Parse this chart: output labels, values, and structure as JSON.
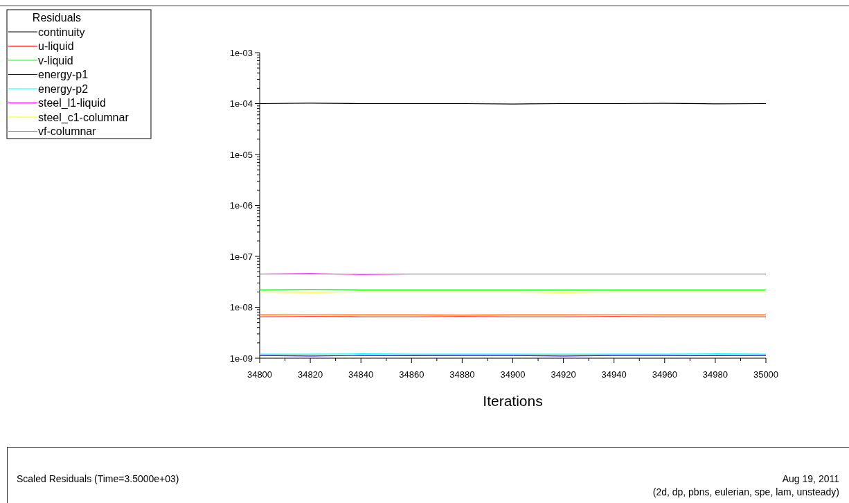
{
  "chart_data": {
    "type": "line",
    "log": "y",
    "legend": "top left",
    "legend_title": "Residuals",
    "marker": "none",
    "line_style": "solid",
    "grid": false,
    "xlabel": "Iterations",
    "annotations": [
      "Scaled Residuals  (Time=3.5000e+03)",
      "Aug 19, 2011",
      "(2d, dp, pbns, eulerian, spe, lam, unsteady)"
    ],
    "x": [
      34800,
      34820,
      34840,
      34860,
      34880,
      34900,
      34920,
      34940,
      34960,
      34980,
      35000
    ],
    "xlim": [
      34800,
      35000
    ],
    "xticks": [
      34800,
      {
        "value": 34810,
        "label": null
      },
      34820,
      {
        "value": 34830,
        "label": null
      },
      34840,
      {
        "value": 34850,
        "label": null
      },
      34860,
      {
        "value": 34870,
        "label": null
      },
      34880,
      {
        "value": 34890,
        "label": null
      },
      34900,
      {
        "value": 34910,
        "label": null
      },
      34920,
      {
        "value": 34930,
        "label": null
      },
      34940,
      {
        "value": 34950,
        "label": null
      },
      34960,
      {
        "value": 34970,
        "label": null
      },
      34980,
      {
        "value": 34990,
        "label": null
      },
      35000
    ],
    "ylim": [
      1e-09,
      0.001
    ],
    "yticks": [
      {
        "value": 1e-09,
        "label": "1e-09"
      },
      {
        "value": 2e-09,
        "label": null
      },
      {
        "value": 3e-09,
        "label": null
      },
      {
        "value": 4e-09,
        "label": null
      },
      {
        "value": 5e-09,
        "label": null
      },
      {
        "value": 6e-09,
        "label": null
      },
      {
        "value": 7e-09,
        "label": null
      },
      {
        "value": 8e-09,
        "label": null
      },
      {
        "value": 9e-09,
        "label": null
      },
      {
        "value": 1e-08,
        "label": "1e-08"
      },
      {
        "value": 2e-08,
        "label": null
      },
      {
        "value": 3e-08,
        "label": null
      },
      {
        "value": 4e-08,
        "label": null
      },
      {
        "value": 5e-08,
        "label": null
      },
      {
        "value": 6e-08,
        "label": null
      },
      {
        "value": 7e-08,
        "label": null
      },
      {
        "value": 8e-08,
        "label": null
      },
      {
        "value": 9e-08,
        "label": null
      },
      {
        "value": 1e-07,
        "label": "1e-07"
      },
      {
        "value": 2e-07,
        "label": null
      },
      {
        "value": 3e-07,
        "label": null
      },
      {
        "value": 4e-07,
        "label": null
      },
      {
        "value": 5e-07,
        "label": null
      },
      {
        "value": 6e-07,
        "label": null
      },
      {
        "value": 7e-07,
        "label": null
      },
      {
        "value": 8e-07,
        "label": null
      },
      {
        "value": 9e-07,
        "label": null
      },
      {
        "value": 1e-06,
        "label": "1e-06"
      },
      {
        "value": 2e-06,
        "label": null
      },
      {
        "value": 3e-06,
        "label": null
      },
      {
        "value": 4e-06,
        "label": null
      },
      {
        "value": 5e-06,
        "label": null
      },
      {
        "value": 6e-06,
        "label": null
      },
      {
        "value": 7e-06,
        "label": null
      },
      {
        "value": 8e-06,
        "label": null
      },
      {
        "value": 9e-06,
        "label": null
      },
      {
        "value": 1e-05,
        "label": "1e-05"
      },
      {
        "value": 2e-05,
        "label": null
      },
      {
        "value": 3e-05,
        "label": null
      },
      {
        "value": 4e-05,
        "label": null
      },
      {
        "value": 5e-05,
        "label": null
      },
      {
        "value": 6e-05,
        "label": null
      },
      {
        "value": 7e-05,
        "label": null
      },
      {
        "value": 8e-05,
        "label": null
      },
      {
        "value": 9e-05,
        "label": null
      },
      {
        "value": 0.0001,
        "label": "1e-04"
      },
      {
        "value": 0.0002,
        "label": null
      },
      {
        "value": 0.0003,
        "label": null
      },
      {
        "value": 0.0004,
        "label": null
      },
      {
        "value": 0.0005,
        "label": null
      },
      {
        "value": 0.0006,
        "label": null
      },
      {
        "value": 0.0007,
        "label": null
      },
      {
        "value": 0.0008,
        "label": null
      },
      {
        "value": 0.0009,
        "label": null
      },
      {
        "value": 0.001,
        "label": "1e-03"
      }
    ],
    "series": [
      {
        "name": "continuity",
        "color": "#000000",
        "values": [
          0.0001,
          0.000102,
          0.0001,
          0.0001,
          0.0001,
          9.8e-05,
          0.0001,
          0.0001,
          0.000101,
          9.9e-05,
          0.0001
        ]
      },
      {
        "name": "u-liquid",
        "color": "#ff0000",
        "values": [
          6.5e-09,
          6.6e-09,
          6.5e-09,
          6.5e-09,
          6.6e-09,
          6.5e-09,
          6.5e-09,
          6.6e-09,
          6.5e-09,
          6.5e-09,
          6.5e-09
        ]
      },
      {
        "name": "v-liquid",
        "color": "#00ff00",
        "values": [
          2.2e-08,
          2.25e-08,
          2.2e-08,
          2.2e-08,
          2.2e-08,
          2.2e-08,
          2.2e-08,
          2.2e-08,
          2.2e-08,
          2.2e-08,
          2.2e-08
        ]
      },
      {
        "name": "energy-p1",
        "color": "#0000ff",
        "values": [
          1.13e-09,
          1.1e-09,
          1.13e-09,
          1.12e-09,
          1.13e-09,
          1.13e-09,
          1.1e-09,
          1.13e-09,
          1.13e-09,
          1.12e-09,
          1.13e-09
        ]
      },
      {
        "name": "energy-p2",
        "color": "#00ffff",
        "values": [
          1.2e-09,
          1.2e-09,
          1.22e-09,
          1.2e-09,
          1.2e-09,
          1.2e-09,
          1.2e-09,
          1.2e-09,
          1.2e-09,
          1.22e-09,
          1.2e-09
        ]
      },
      {
        "name": "steel_l1-liquid",
        "color": "#ff00ff",
        "values": [
          4.5e-08,
          4.6e-08,
          4.4e-08,
          4.5e-08,
          4.5e-08,
          4.5e-08,
          4.5e-08,
          4.5e-08,
          4.5e-08,
          4.5e-08,
          4.5e-08
        ]
      },
      {
        "name": "steel_c1-columnar",
        "color": "#ffff00",
        "values": [
          2e-08,
          1.95e-08,
          2e-08,
          2e-08,
          2e-08,
          2e-08,
          1.95e-08,
          2e-08,
          2e-08,
          2e-08,
          2e-08
        ]
      },
      {
        "name": "vf-columnar",
        "color": "#ff6600",
        "values": [
          7.1e-09,
          7.2e-09,
          7.1e-09,
          7.1e-09,
          7e-09,
          7.1e-09,
          7.1e-09,
          7.2e-09,
          7.1e-09,
          7.1e-09,
          7.1e-09
        ]
      }
    ]
  }
}
